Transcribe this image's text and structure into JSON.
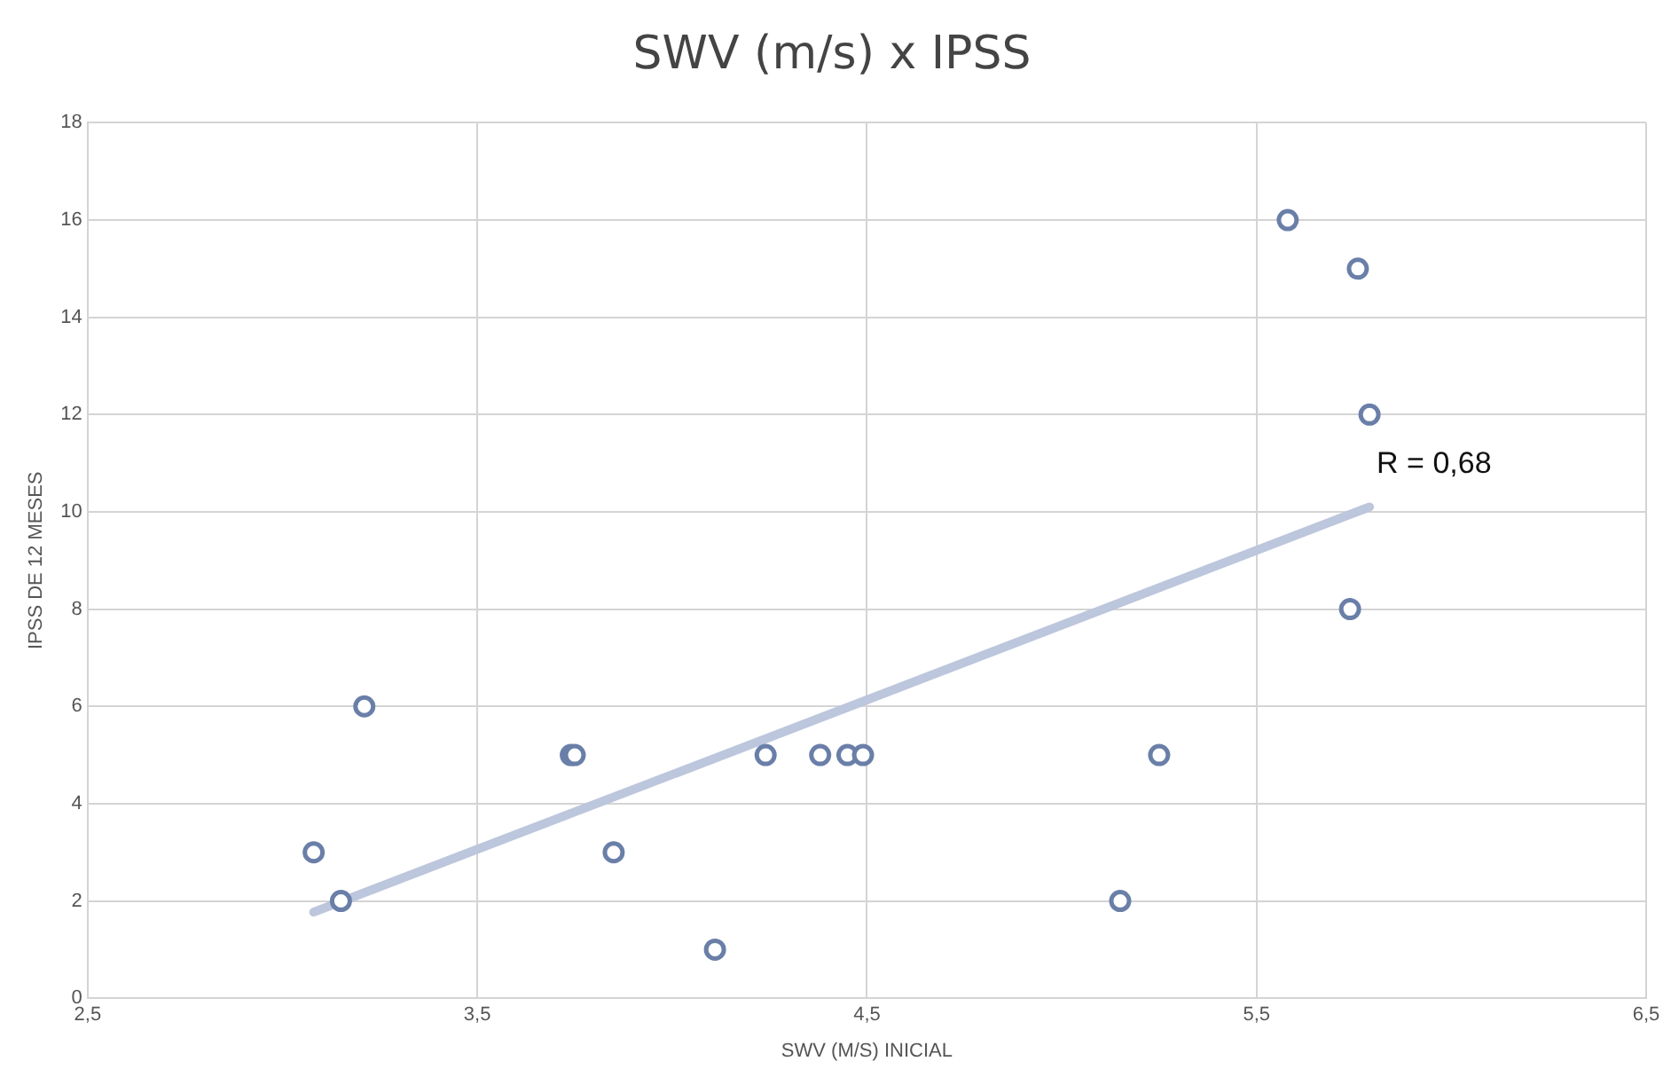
{
  "chart_data": {
    "type": "scatter",
    "title": "SWV (m/s) x IPSS",
    "xlabel": "SWV (M/S) INICIAL",
    "ylabel": "IPSS DE 12 MESES",
    "series": [
      {
        "color": "#6a7fa8",
        "marker": "circle",
        "x": [
          3.08,
          3.15,
          3.21,
          3.74,
          3.75,
          3.85,
          4.11,
          4.24,
          4.38,
          4.45,
          4.49,
          5.15,
          5.25,
          5.58,
          5.76,
          5.79,
          5.74
        ],
        "values": [
          3,
          2,
          6,
          5,
          5,
          3,
          1,
          5,
          5,
          5,
          5,
          2,
          5,
          16,
          15,
          12,
          8
        ]
      },
      {
        "type": "line",
        "color": "#bcc6dc",
        "marker": "none",
        "x": [
          3.08,
          5.79
        ],
        "values": [
          1.77,
          10.1
        ]
      }
    ],
    "annotations": [
      "R = 0,68"
    ],
    "xlim": [
      2.5,
      6.5
    ],
    "xticks": [
      {
        "value": 2.5,
        "label": "2,5"
      },
      {
        "value": 3.5,
        "label": "3,5"
      },
      {
        "value": 4.5,
        "label": "4,5"
      },
      {
        "value": 5.5,
        "label": "5,5"
      },
      {
        "value": 6.5,
        "label": "6,5"
      }
    ],
    "ylim": [
      0,
      18
    ],
    "yticks": [
      0,
      2,
      4,
      6,
      8,
      10,
      12,
      14,
      16,
      18
    ],
    "grid": true,
    "legend": false
  }
}
